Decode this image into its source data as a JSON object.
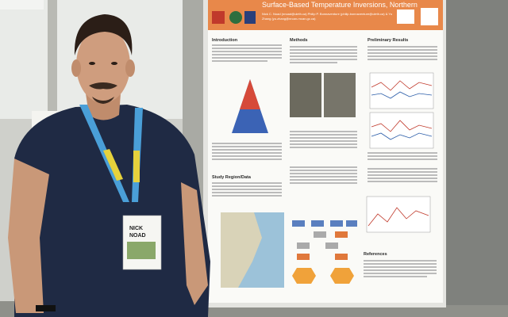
{
  "poster": {
    "title": "Surface-Based Temperature Inversions, Northern",
    "authors": [
      "Nick C. Noad (nnoad@uleth.ca) Philip P. Bonnaventure (philip.bonnaventure@uleth.ca) & Yu",
      "Zhang (yu.zhang@nrcan-rncan.gc.ca)"
    ],
    "sections": [
      "Introduction",
      "Methods",
      "Preliminary Results",
      "Study Region/Data",
      "References"
    ]
  },
  "badge": {
    "first": "NICK",
    "last": "NOAD"
  }
}
